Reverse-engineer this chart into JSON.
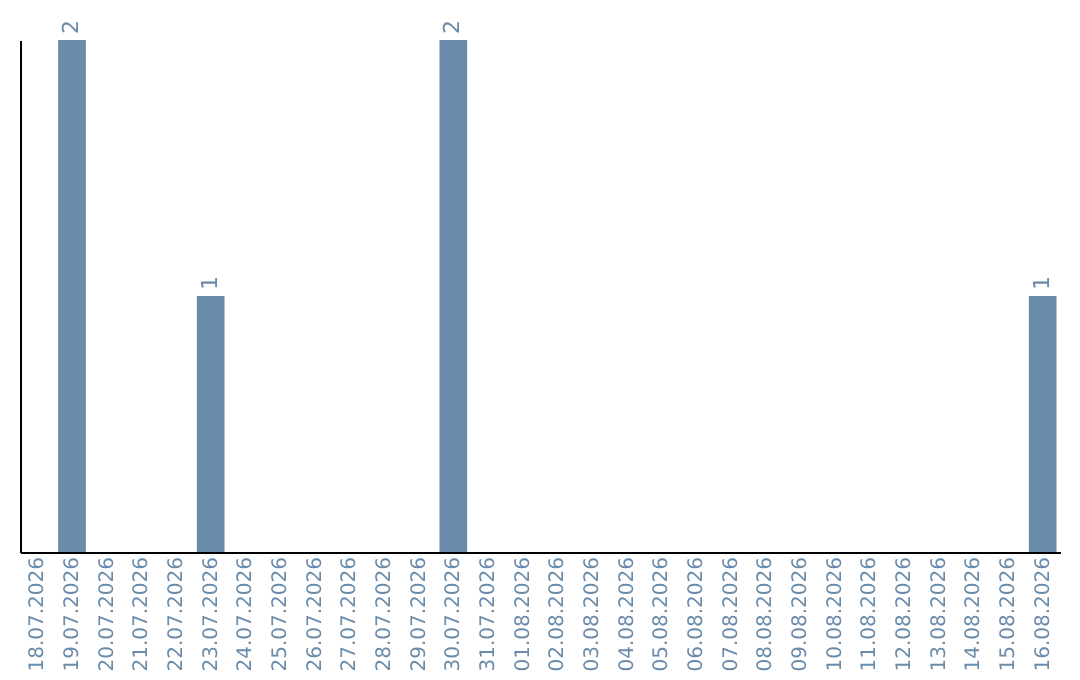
{
  "chart_data": {
    "type": "bar",
    "categories": [
      "18.07.2026",
      "19.07.2026",
      "20.07.2026",
      "21.07.2026",
      "22.07.2026",
      "23.07.2026",
      "24.07.2026",
      "25.07.2026",
      "26.07.2026",
      "27.07.2026",
      "28.07.2026",
      "29.07.2026",
      "30.07.2026",
      "31.07.2026",
      "01.08.2026",
      "02.08.2026",
      "03.08.2026",
      "04.08.2026",
      "05.08.2026",
      "06.08.2026",
      "07.08.2026",
      "08.08.2026",
      "09.08.2026",
      "10.08.2026",
      "11.08.2026",
      "12.08.2026",
      "13.08.2026",
      "14.08.2026",
      "15.08.2026",
      "16.08.2026"
    ],
    "values": [
      0,
      2,
      0,
      0,
      0,
      1,
      0,
      0,
      0,
      0,
      0,
      0,
      2,
      0,
      0,
      0,
      0,
      0,
      0,
      0,
      0,
      0,
      0,
      0,
      0,
      0,
      0,
      0,
      0,
      1
    ],
    "value_labels": [
      null,
      "2",
      null,
      null,
      null,
      "1",
      null,
      null,
      null,
      null,
      null,
      null,
      "2",
      null,
      null,
      null,
      null,
      null,
      null,
      null,
      null,
      null,
      null,
      null,
      null,
      null,
      null,
      null,
      null,
      "1"
    ],
    "color": "#6a8caa",
    "tick_labels": "x",
    "grid": false
  }
}
